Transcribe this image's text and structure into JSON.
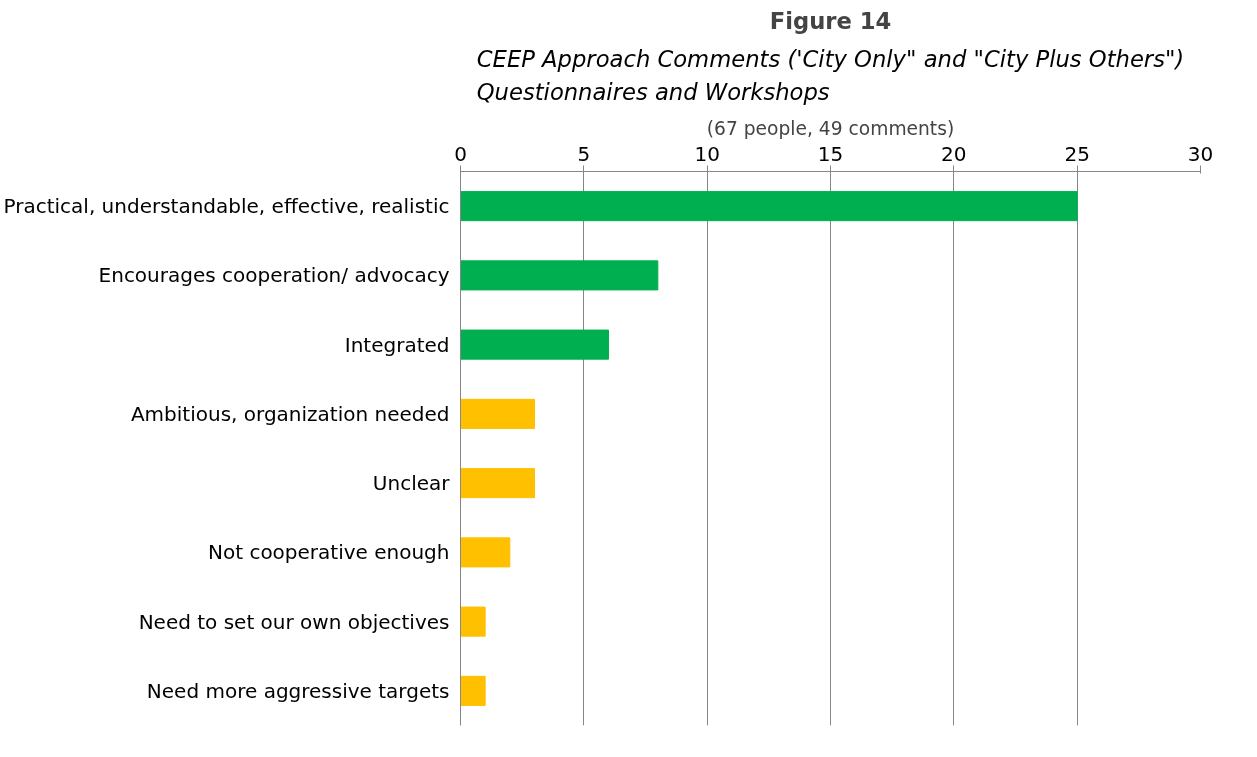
{
  "chart_data": {
    "type": "bar",
    "orientation": "horizontal",
    "title": "Figure 14",
    "subtitle": "CEEP Approach Comments ('City Only\" and \"City Plus Others\")\nQuestionnaires and Workshops",
    "annotations": [
      "(67 people, 49 comments)"
    ],
    "categories": [
      "Practical, understandable, effective, realistic",
      "Encourages cooperation/ advocacy",
      "Integrated",
      "Ambitious, organization needed",
      "Unclear",
      "Not cooperative enough",
      "Need to set our own objectives",
      "Need more aggressive targets"
    ],
    "values": [
      25,
      8,
      6,
      3,
      3,
      2,
      1,
      1
    ],
    "colors": [
      "#00b050",
      "#00b050",
      "#00b050",
      "#ffc000",
      "#ffc000",
      "#ffc000",
      "#ffc000",
      "#ffc000"
    ],
    "xlim": [
      0,
      30
    ],
    "xticks": [
      0,
      5,
      10,
      15,
      20,
      25,
      30
    ],
    "grid": "x"
  }
}
